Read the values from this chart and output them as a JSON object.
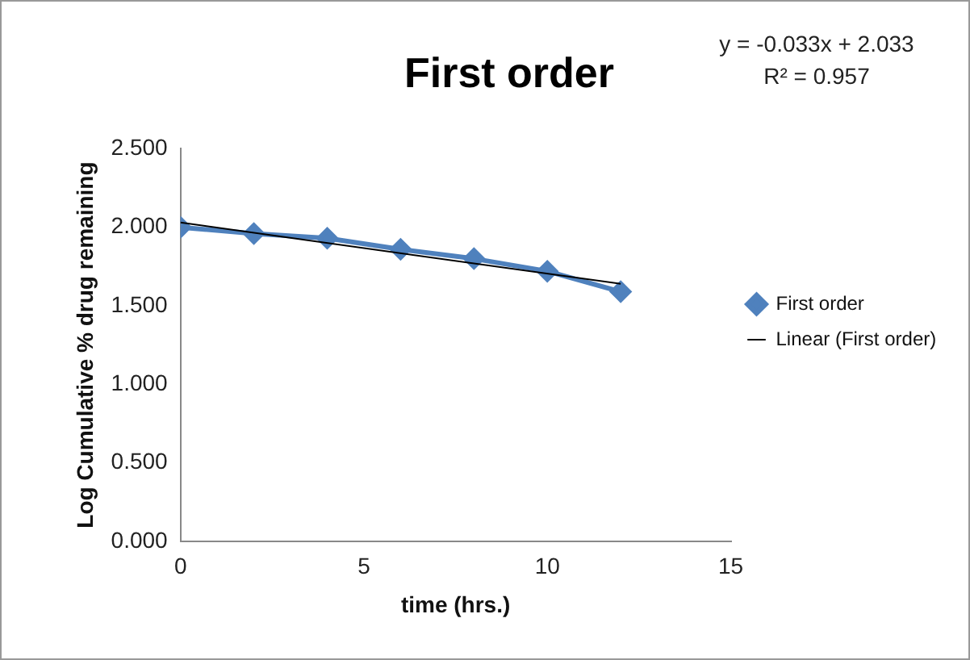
{
  "chart_data": {
    "type": "line",
    "title": "First order",
    "xlabel": "time (hrs.)",
    "ylabel": "Log Cumulative % drug remaining",
    "annotations": [
      "y = -0.033x + 2.033",
      "R² = 0.957"
    ],
    "series": [
      {
        "name": "First order",
        "color": "#4f81bd",
        "x": [
          0,
          2,
          4,
          6,
          8,
          10,
          12
        ],
        "values": [
          2.0,
          1.96,
          1.93,
          1.86,
          1.8,
          1.72,
          1.59
        ],
        "marker": "diamond"
      },
      {
        "name": "Linear (First order)",
        "color": "#000000",
        "x": [
          0,
          12
        ],
        "values": [
          2.03,
          1.64
        ],
        "marker": "none"
      }
    ],
    "xlim": [
      0,
      15
    ],
    "xticks": [
      0,
      5,
      10,
      15
    ],
    "ylim": [
      0,
      2.5
    ],
    "yticks": [
      {
        "value": 0,
        "label": "0.000"
      },
      {
        "value": 0.5,
        "label": "0.500"
      },
      {
        "value": 1,
        "label": "1.000"
      },
      {
        "value": 1.5,
        "label": "1.500"
      },
      {
        "value": 2,
        "label": "2.000"
      },
      {
        "value": 2.5,
        "label": "2.500"
      }
    ],
    "legend": "right",
    "grid": false
  }
}
